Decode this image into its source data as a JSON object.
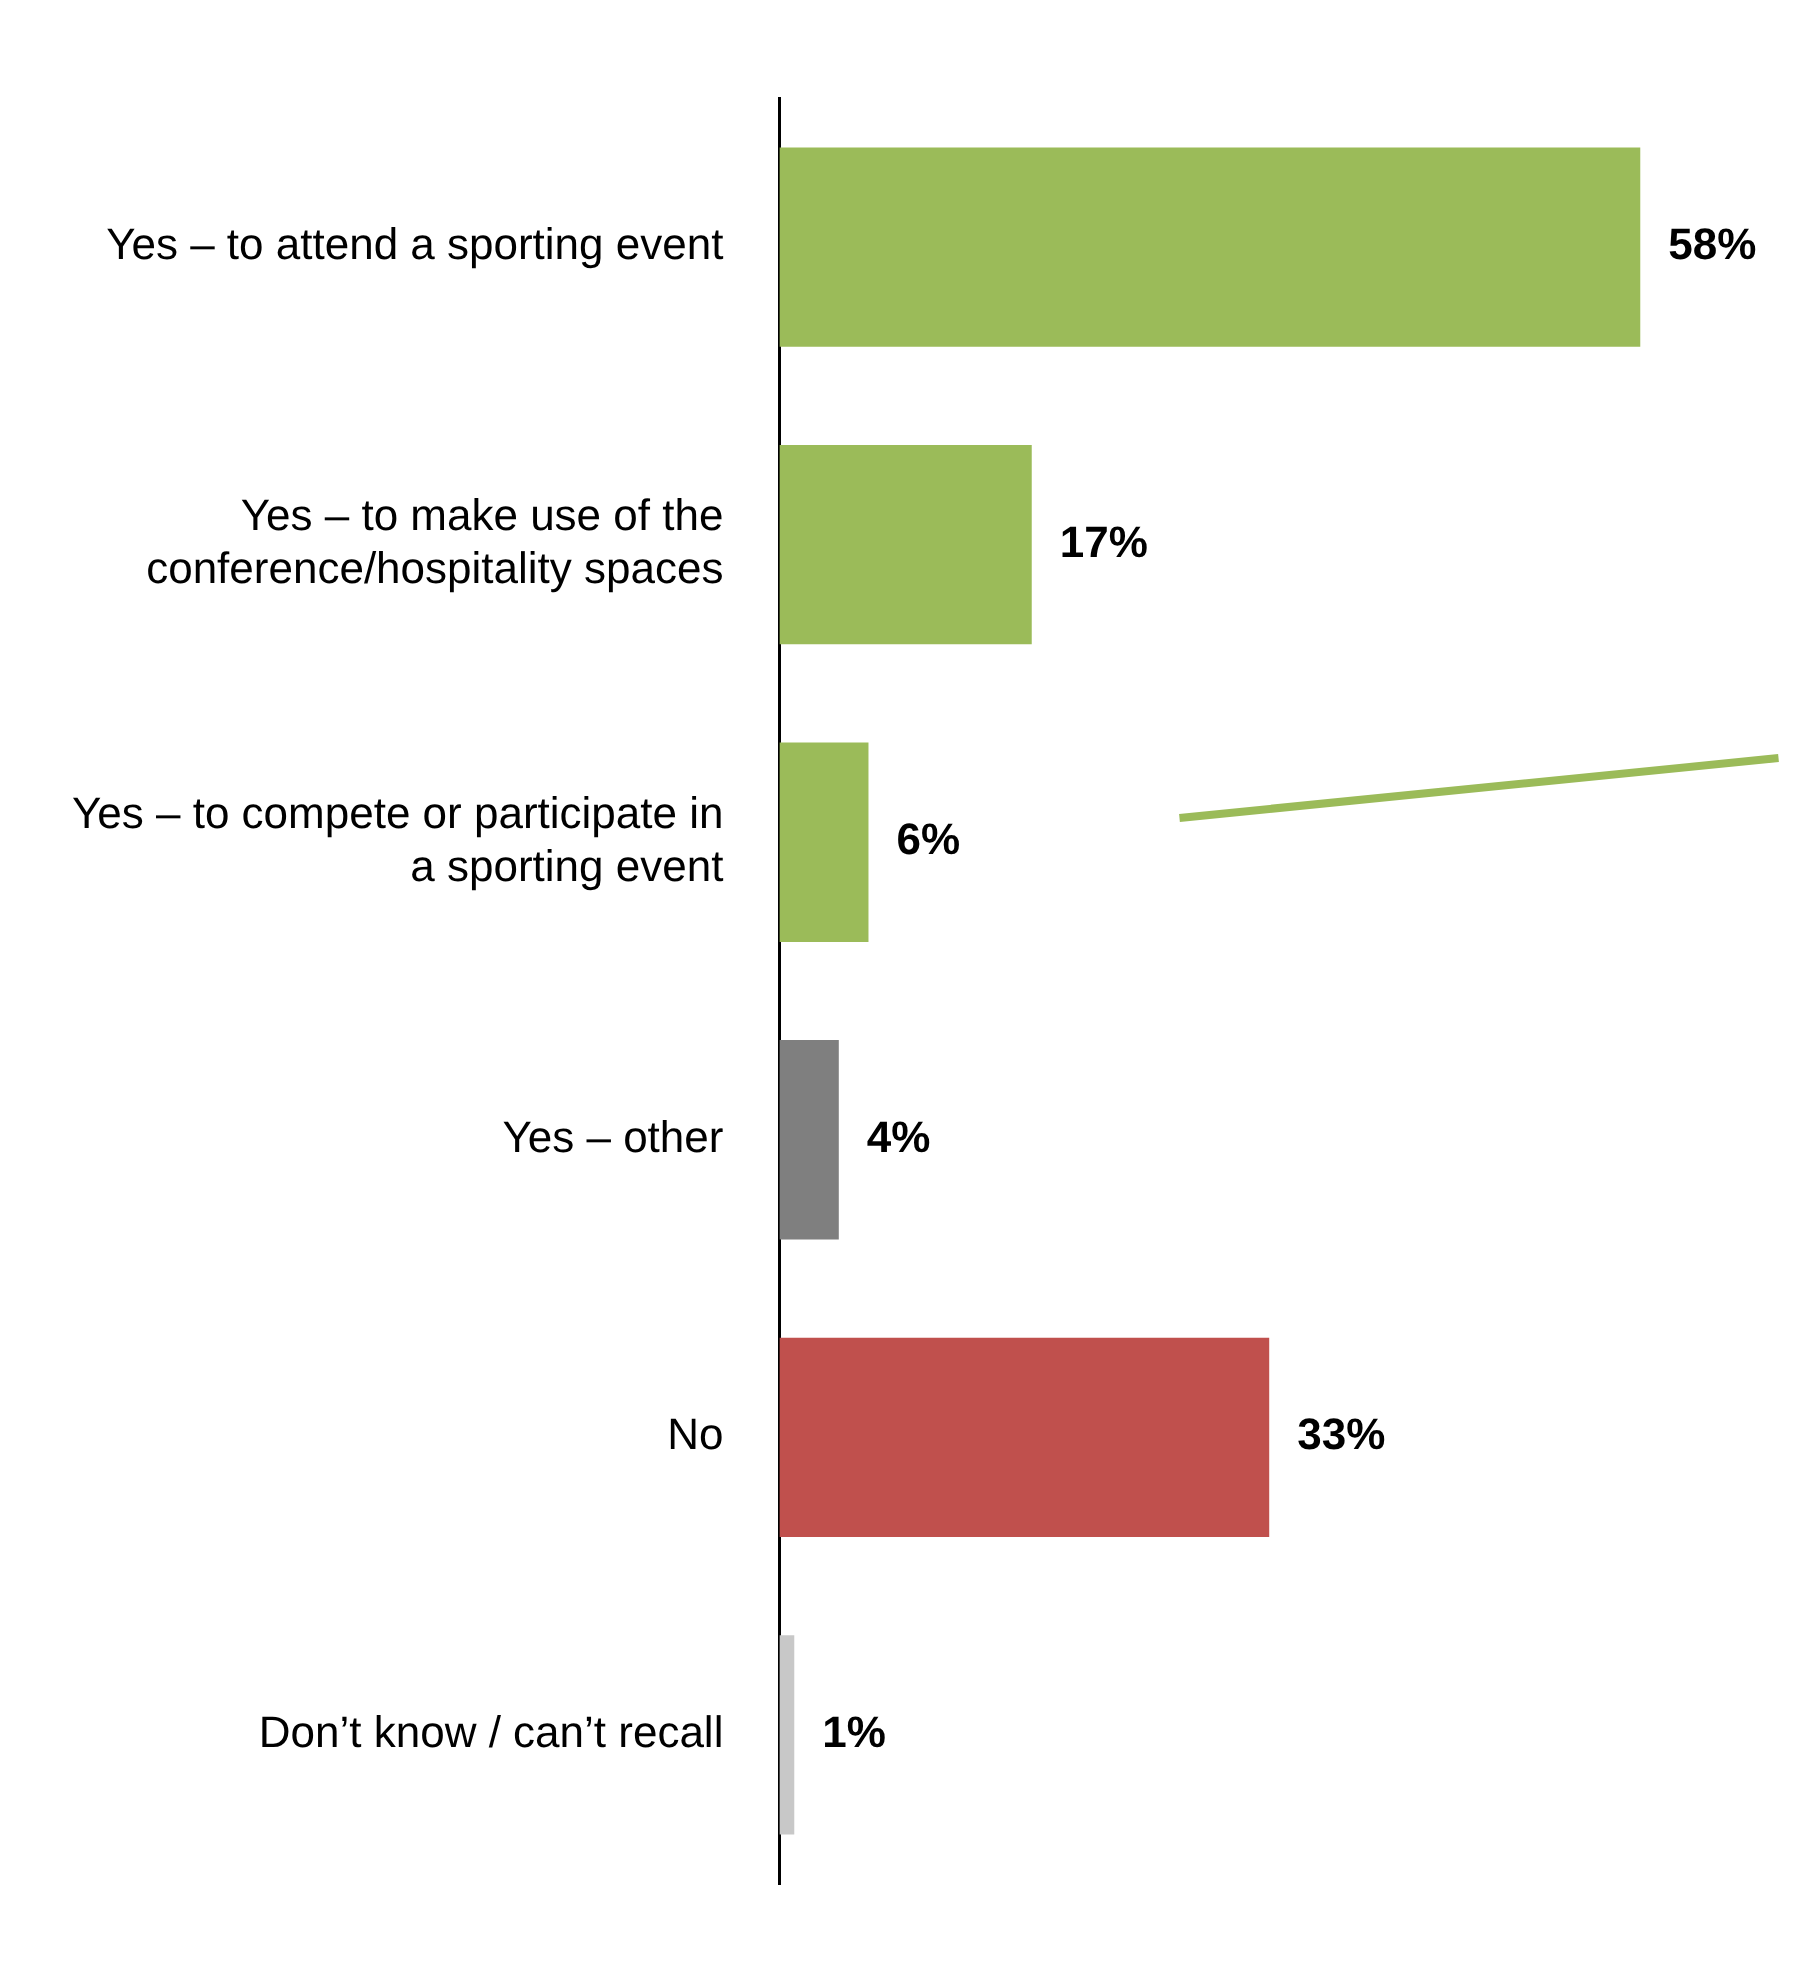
{
  "chart_data": {
    "type": "bar",
    "orientation": "horizontal",
    "categories": [
      "Yes – to attend a sporting event",
      "Yes – to make use of the conference/hospitality spaces",
      "Yes – to compete or participate in a sporting event",
      "Yes – other",
      "No",
      "Don’t know / can’t recall"
    ],
    "values": [
      58,
      17,
      6,
      4,
      33,
      1
    ],
    "colors": [
      "#9bbb59",
      "#9bbb59",
      "#9bbb59",
      "#7f7f7f",
      "#c0504d",
      "#c8c8c8"
    ],
    "value_labels": [
      "58%",
      "17%",
      "6%",
      "4%",
      "33%",
      "1%"
    ],
    "legend": false
  }
}
